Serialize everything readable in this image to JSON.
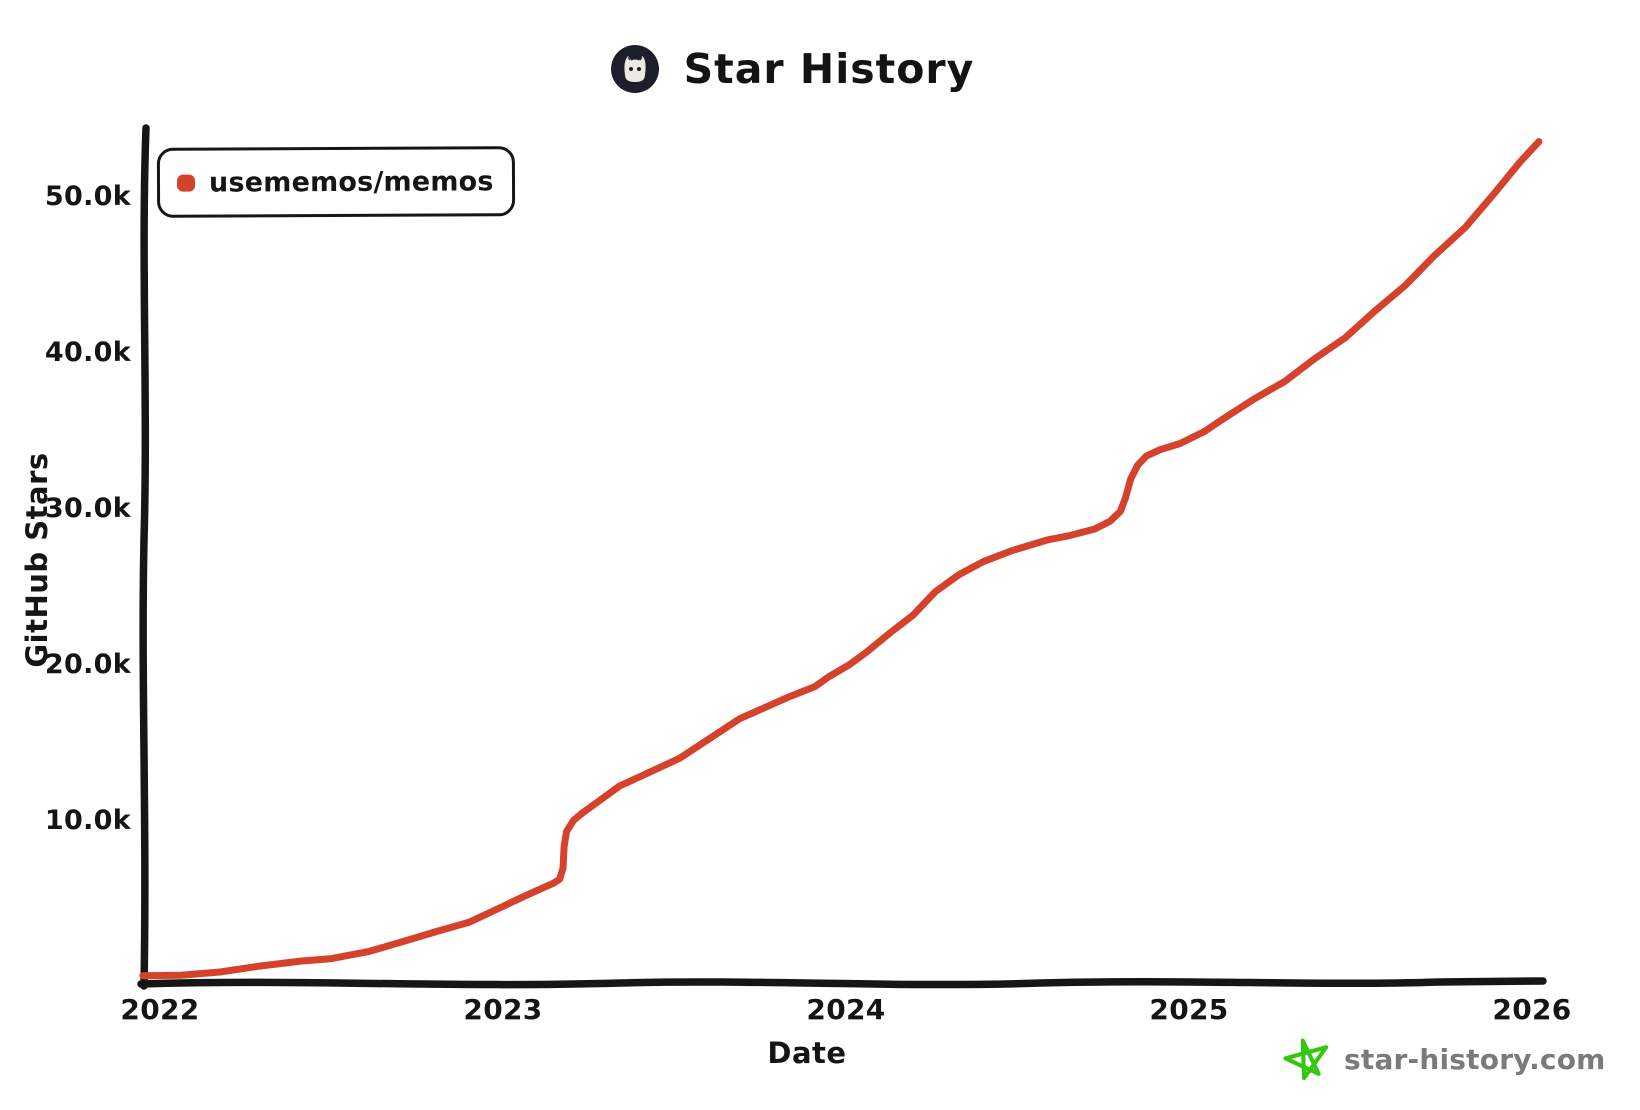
{
  "header": {
    "title": "Star History"
  },
  "icons": {
    "logo": "github-cat-logo",
    "watermark_star": "hand-drawn-star-outline"
  },
  "colors": {
    "series_line": "#d5422b",
    "axis": "#161616",
    "watermark_star": "#35c70f",
    "watermark_text": "#7a7a7a",
    "logo_background": "#1c1f2b"
  },
  "watermark": {
    "text": "star-history.com"
  },
  "chart_data": {
    "type": "line",
    "title": "Star History",
    "xlabel": "Date",
    "ylabel": "GitHub Stars",
    "grid": false,
    "legend_position": "top-left",
    "xlim": [
      2021.93,
      2026.08
    ],
    "ylim": [
      0,
      55000
    ],
    "x_ticks": [
      {
        "label": "2022",
        "year": 2022
      },
      {
        "label": "2023",
        "year": 2023
      },
      {
        "label": "2024",
        "year": 2024
      },
      {
        "label": "2025",
        "year": 2025
      },
      {
        "label": "2026",
        "year": 2026
      }
    ],
    "y_ticks": [
      {
        "label": "10.0k",
        "value": 10000
      },
      {
        "label": "20.0k",
        "value": 20000
      },
      {
        "label": "30.0k",
        "value": 30000
      },
      {
        "label": "40.0k",
        "value": 40000
      },
      {
        "label": "50.0k",
        "value": 50000
      }
    ],
    "series": [
      {
        "name": "usememos/memos",
        "color": "#d5422b",
        "points": [
          [
            2021.95,
            150
          ],
          [
            2022.06,
            250
          ],
          [
            2022.175,
            400
          ],
          [
            2022.29,
            700
          ],
          [
            2022.41,
            1050
          ],
          [
            2022.5,
            1300
          ],
          [
            2022.61,
            1750
          ],
          [
            2022.71,
            2300
          ],
          [
            2022.81,
            2950
          ],
          [
            2022.9,
            3600
          ],
          [
            2022.99,
            4550
          ],
          [
            2023.05,
            5100
          ],
          [
            2023.11,
            5650
          ],
          [
            2023.145,
            6050
          ],
          [
            2023.165,
            6400
          ],
          [
            2023.175,
            7050
          ],
          [
            2023.178,
            8350
          ],
          [
            2023.185,
            9350
          ],
          [
            2023.205,
            10150
          ],
          [
            2023.233,
            10650
          ],
          [
            2023.283,
            11350
          ],
          [
            2023.34,
            12250
          ],
          [
            2023.415,
            13100
          ],
          [
            2023.515,
            14150
          ],
          [
            2023.6,
            15300
          ],
          [
            2023.69,
            16550
          ],
          [
            2023.76,
            17300
          ],
          [
            2023.835,
            18100
          ],
          [
            2023.91,
            18700
          ],
          [
            2023.95,
            19250
          ],
          [
            2024.01,
            20050
          ],
          [
            2024.06,
            20950
          ],
          [
            2024.13,
            22200
          ],
          [
            2024.195,
            23200
          ],
          [
            2024.26,
            24700
          ],
          [
            2024.33,
            25900
          ],
          [
            2024.4,
            26750
          ],
          [
            2024.48,
            27350
          ],
          [
            2024.585,
            28000
          ],
          [
            2024.65,
            28350
          ],
          [
            2024.725,
            28850
          ],
          [
            2024.77,
            29300
          ],
          [
            2024.8,
            29850
          ],
          [
            2024.815,
            30750
          ],
          [
            2024.83,
            32050
          ],
          [
            2024.85,
            32900
          ],
          [
            2024.875,
            33400
          ],
          [
            2024.915,
            33800
          ],
          [
            2024.975,
            34300
          ],
          [
            2025.045,
            35100
          ],
          [
            2025.105,
            35900
          ],
          [
            2025.19,
            37050
          ],
          [
            2025.28,
            38250
          ],
          [
            2025.365,
            39750
          ],
          [
            2025.455,
            41050
          ],
          [
            2025.54,
            42650
          ],
          [
            2025.63,
            44350
          ],
          [
            2025.715,
            46350
          ],
          [
            2025.805,
            48150
          ],
          [
            2025.89,
            50250
          ],
          [
            2025.965,
            52250
          ],
          [
            2026.02,
            53650
          ]
        ]
      }
    ]
  }
}
